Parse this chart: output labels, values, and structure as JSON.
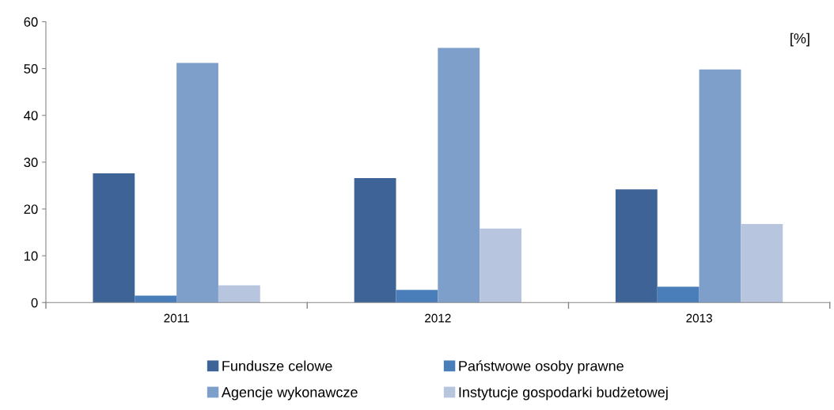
{
  "chart_data": {
    "type": "bar",
    "categories": [
      "2011",
      "2012",
      "2013"
    ],
    "series": [
      {
        "name": "Fundusze celowe",
        "color": "#3e6497",
        "values": [
          27.6,
          26.6,
          24.2
        ]
      },
      {
        "name": "Państwowe osoby prawne",
        "color": "#4a7ebb",
        "values": [
          1.5,
          2.7,
          3.4
        ]
      },
      {
        "name": "Agencje wykonawcze",
        "color": "#7f9fcb",
        "values": [
          51.2,
          54.4,
          49.8
        ]
      },
      {
        "name": "Instytucje gospodarki budżetowej",
        "color": "#b7c5df",
        "values": [
          3.7,
          15.8,
          16.8
        ]
      }
    ],
    "ylim": [
      0,
      60
    ],
    "yticks": [
      0,
      10,
      20,
      30,
      40,
      50,
      60
    ],
    "annotations": [
      "[%]"
    ],
    "grid": false,
    "legend": "bottom"
  }
}
